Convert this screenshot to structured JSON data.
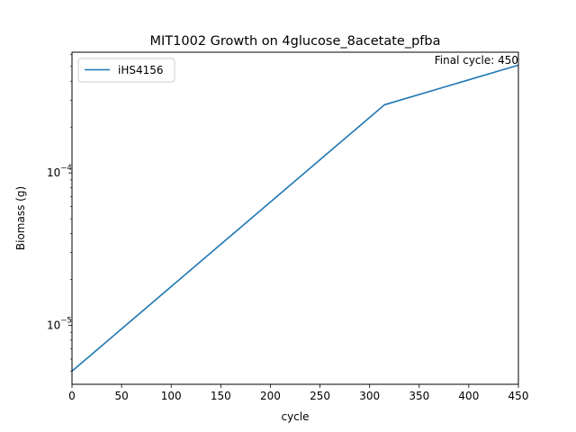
{
  "chart_data": {
    "type": "line",
    "title": "MIT1002 Growth on 4glucose_8acetate_pfba",
    "xlabel": "cycle",
    "ylabel": "Biomass (g)",
    "annotation": "Final cycle: 450",
    "y_scale": "log",
    "grid": false,
    "legend_position": "top-left",
    "xlim": [
      0,
      450
    ],
    "ylim": [
      4.1e-06,
      0.00062
    ],
    "x_ticks": [
      0,
      50,
      100,
      150,
      200,
      250,
      300,
      350,
      400,
      450
    ],
    "x_tick_labels": [
      "0",
      "50",
      "100",
      "150",
      "200",
      "250",
      "300",
      "350",
      "400",
      "450"
    ],
    "y_major_ticks": [
      1e-05,
      0.0001
    ],
    "y_major_tick_labels": [
      [
        "10",
        "−5"
      ],
      [
        "10",
        "−4"
      ]
    ],
    "y_minor_ticks": [
      5e-06,
      6e-06,
      7e-06,
      8e-06,
      9e-06,
      2e-05,
      3e-05,
      4e-05,
      5e-05,
      6e-05,
      7e-05,
      8e-05,
      9e-05,
      0.0002,
      0.0003,
      0.0004,
      0.0005,
      0.0006
    ],
    "series": [
      {
        "name": "iHS4156",
        "color": "#1f77b4",
        "x": [
          0,
          315,
          450
        ],
        "y": [
          5e-06,
          0.00028,
          0.00051
        ]
      }
    ]
  }
}
